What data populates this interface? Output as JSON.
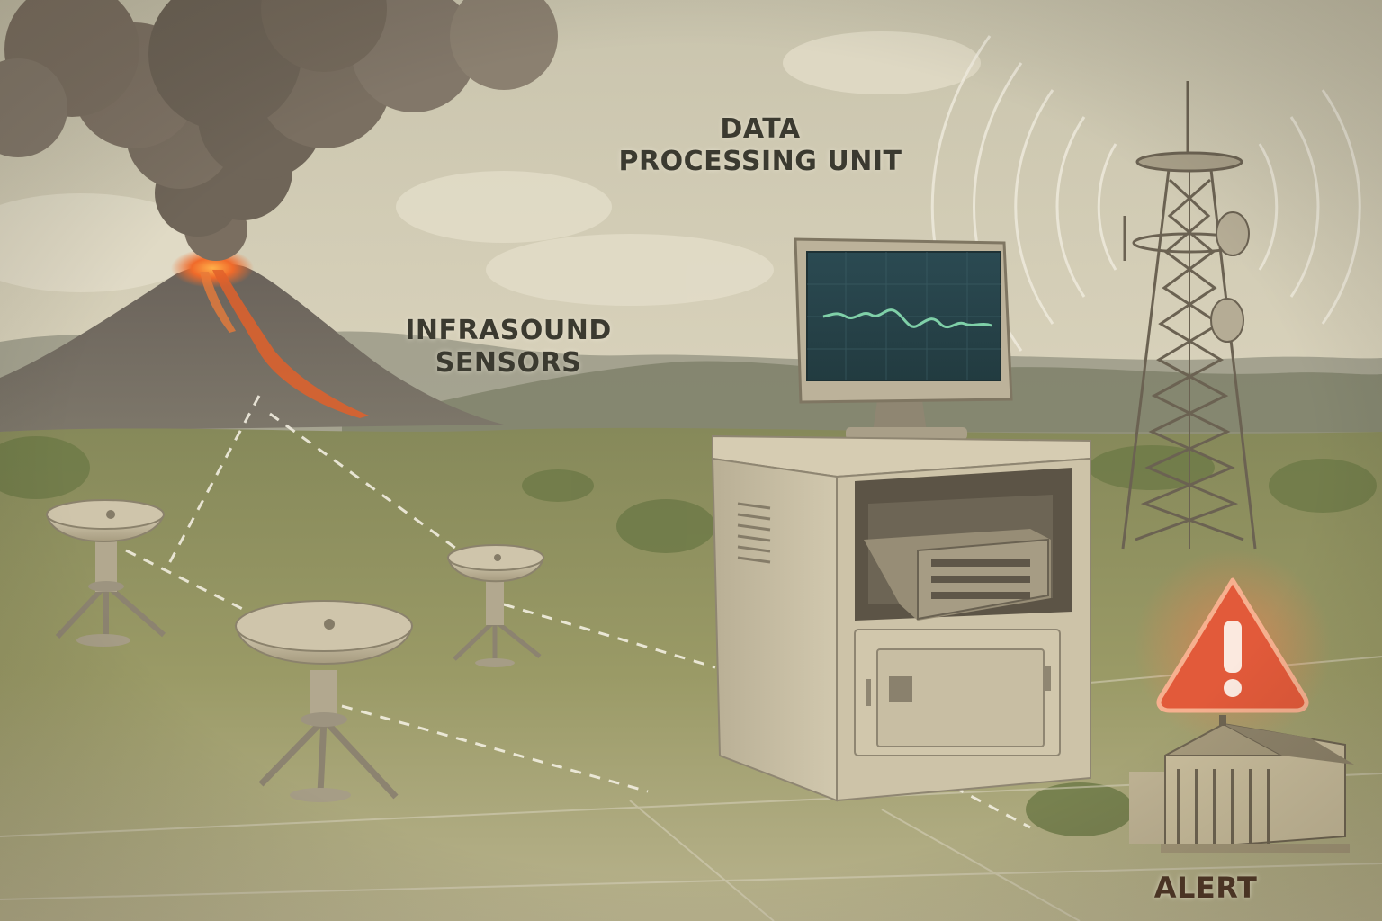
{
  "labels": {
    "data_processing_unit": [
      "DATA",
      "PROCESSING UNIT"
    ],
    "infrasound_sensors": [
      "INFRASOUND",
      "SENSORS"
    ],
    "alert": "ALERT"
  },
  "alert_glyph": "!",
  "colors": {
    "sky_top": "#cfcab4",
    "sky_bottom": "#e3dcc6",
    "grass": "#8e9260",
    "ash_cloud": "#6f6558",
    "lava": "#e0602a",
    "equipment_beige": "#c9bfa6",
    "screen": "#2d4a4f",
    "waveform": "#7fd0a8",
    "alert_red": "#e25a3a",
    "label_text": "#3b3a30"
  }
}
